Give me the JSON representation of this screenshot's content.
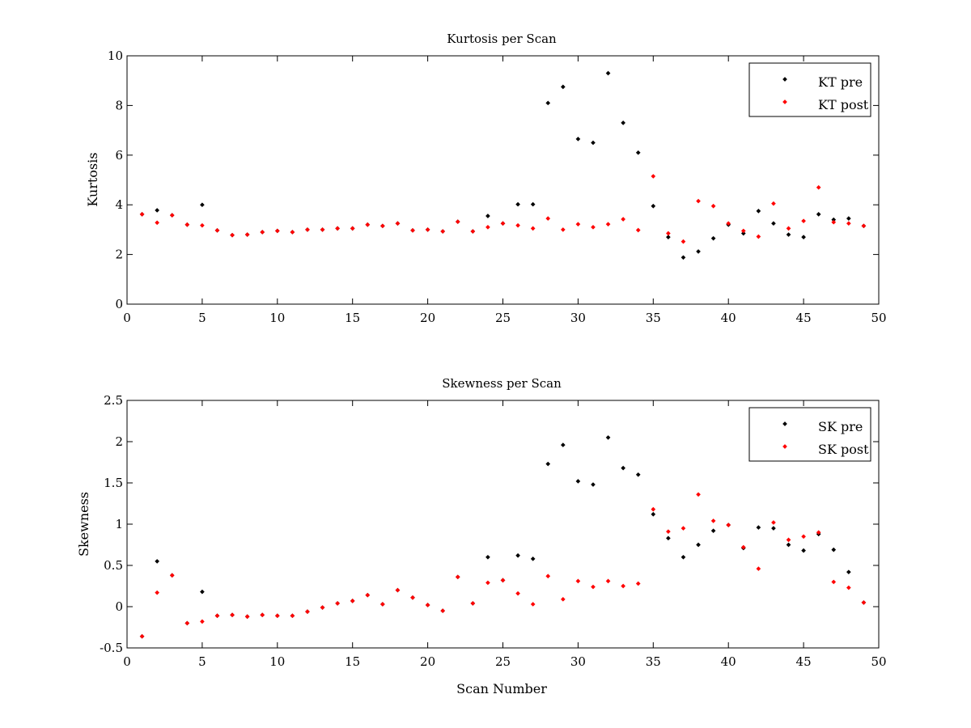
{
  "colors": {
    "pre": "#000000",
    "post": "#ff0000",
    "axis": "#000000",
    "background": "#ffffff"
  },
  "chart_data": [
    {
      "type": "scatter",
      "title": "Kurtosis per Scan",
      "xlabel": "",
      "ylabel": "Kurtosis",
      "xlim": [
        0,
        50
      ],
      "ylim": [
        0,
        10
      ],
      "xticks": [
        0,
        5,
        10,
        15,
        20,
        25,
        30,
        35,
        40,
        45,
        50
      ],
      "yticks": [
        0,
        2,
        4,
        6,
        8,
        10
      ],
      "grid": false,
      "legend_position": "top-right",
      "series": [
        {
          "name": "KT pre",
          "color": "#000000",
          "x": [
            1,
            2,
            3,
            4,
            5,
            6,
            7,
            8,
            9,
            10,
            11,
            12,
            13,
            14,
            15,
            16,
            17,
            18,
            19,
            20,
            21,
            22,
            23,
            24,
            25,
            26,
            27,
            28,
            29,
            30,
            31,
            32,
            33,
            34,
            35,
            36,
            37,
            38,
            39,
            40,
            41,
            42,
            43,
            44,
            45,
            46,
            47,
            48,
            49
          ],
          "y": [
            3.62,
            3.78,
            3.58,
            3.2,
            4.0,
            2.97,
            2.78,
            2.8,
            2.9,
            2.95,
            2.9,
            3.0,
            3.0,
            3.05,
            3.05,
            3.2,
            3.15,
            3.25,
            2.97,
            3.0,
            2.93,
            3.32,
            2.93,
            3.55,
            3.25,
            4.02,
            4.02,
            8.1,
            8.75,
            6.65,
            6.5,
            9.3,
            7.3,
            6.1,
            3.95,
            2.7,
            1.88,
            2.12,
            2.65,
            3.2,
            2.85,
            3.75,
            3.25,
            2.8,
            2.7,
            3.62,
            3.4,
            3.45,
            3.15
          ]
        },
        {
          "name": "KT post",
          "color": "#ff0000",
          "x": [
            1,
            2,
            3,
            4,
            5,
            6,
            7,
            8,
            9,
            10,
            11,
            12,
            13,
            14,
            15,
            16,
            17,
            18,
            19,
            20,
            21,
            22,
            23,
            24,
            25,
            26,
            27,
            28,
            29,
            30,
            31,
            32,
            33,
            34,
            35,
            36,
            37,
            38,
            39,
            40,
            41,
            42,
            43,
            44,
            45,
            46,
            47,
            48,
            49
          ],
          "y": [
            3.62,
            3.28,
            3.58,
            3.2,
            3.17,
            2.97,
            2.78,
            2.8,
            2.9,
            2.95,
            2.9,
            3.0,
            3.0,
            3.05,
            3.05,
            3.2,
            3.15,
            3.25,
            2.97,
            3.0,
            2.93,
            3.32,
            2.93,
            3.1,
            3.25,
            3.17,
            3.05,
            3.45,
            3.0,
            3.22,
            3.1,
            3.22,
            3.42,
            2.98,
            5.15,
            2.85,
            2.52,
            4.15,
            3.95,
            3.25,
            2.95,
            2.72,
            4.05,
            3.05,
            3.35,
            4.7,
            3.3,
            3.25,
            3.15
          ]
        }
      ]
    },
    {
      "type": "scatter",
      "title": "Skewness per Scan",
      "xlabel": "Scan Number",
      "ylabel": "Skewness",
      "xlim": [
        0,
        50
      ],
      "ylim": [
        -0.5,
        2.5
      ],
      "xticks": [
        0,
        5,
        10,
        15,
        20,
        25,
        30,
        35,
        40,
        45,
        50
      ],
      "yticks": [
        -0.5,
        0,
        0.5,
        1,
        1.5,
        2,
        2.5
      ],
      "grid": false,
      "legend_position": "top-right",
      "series": [
        {
          "name": "SK pre",
          "color": "#000000",
          "x": [
            1,
            2,
            3,
            4,
            5,
            6,
            7,
            8,
            9,
            10,
            11,
            12,
            13,
            14,
            15,
            16,
            17,
            18,
            19,
            20,
            21,
            22,
            23,
            24,
            25,
            26,
            27,
            28,
            29,
            30,
            31,
            32,
            33,
            34,
            35,
            36,
            37,
            38,
            39,
            40,
            41,
            42,
            43,
            44,
            45,
            46,
            47,
            48,
            49
          ],
          "y": [
            -0.36,
            0.55,
            0.38,
            -0.2,
            0.18,
            -0.11,
            -0.1,
            -0.12,
            -0.1,
            -0.11,
            -0.11,
            -0.06,
            -0.01,
            0.04,
            0.07,
            0.14,
            0.03,
            0.2,
            0.11,
            0.02,
            -0.05,
            0.36,
            0.04,
            0.6,
            0.32,
            0.62,
            0.58,
            1.73,
            1.96,
            1.52,
            1.48,
            2.05,
            1.68,
            1.6,
            1.12,
            0.83,
            0.6,
            0.75,
            0.92,
            0.99,
            0.71,
            0.96,
            0.95,
            0.75,
            0.68,
            0.88,
            0.69,
            0.42,
            0.05
          ]
        },
        {
          "name": "SK post",
          "color": "#ff0000",
          "x": [
            1,
            2,
            3,
            4,
            5,
            6,
            7,
            8,
            9,
            10,
            11,
            12,
            13,
            14,
            15,
            16,
            17,
            18,
            19,
            20,
            21,
            22,
            23,
            24,
            25,
            26,
            27,
            28,
            29,
            30,
            31,
            32,
            33,
            34,
            35,
            36,
            37,
            38,
            39,
            40,
            41,
            42,
            43,
            44,
            45,
            46,
            47,
            48,
            49
          ],
          "y": [
            -0.36,
            0.17,
            0.38,
            -0.2,
            -0.18,
            -0.11,
            -0.1,
            -0.12,
            -0.1,
            -0.11,
            -0.11,
            -0.06,
            -0.01,
            0.04,
            0.07,
            0.14,
            0.03,
            0.2,
            0.11,
            0.02,
            -0.05,
            0.36,
            0.04,
            0.29,
            0.32,
            0.16,
            0.03,
            0.37,
            0.09,
            0.31,
            0.24,
            0.31,
            0.25,
            0.28,
            1.18,
            0.91,
            0.95,
            1.36,
            1.04,
            0.99,
            0.72,
            0.46,
            1.02,
            0.81,
            0.85,
            0.9,
            0.3,
            0.23,
            0.05
          ]
        }
      ]
    }
  ]
}
